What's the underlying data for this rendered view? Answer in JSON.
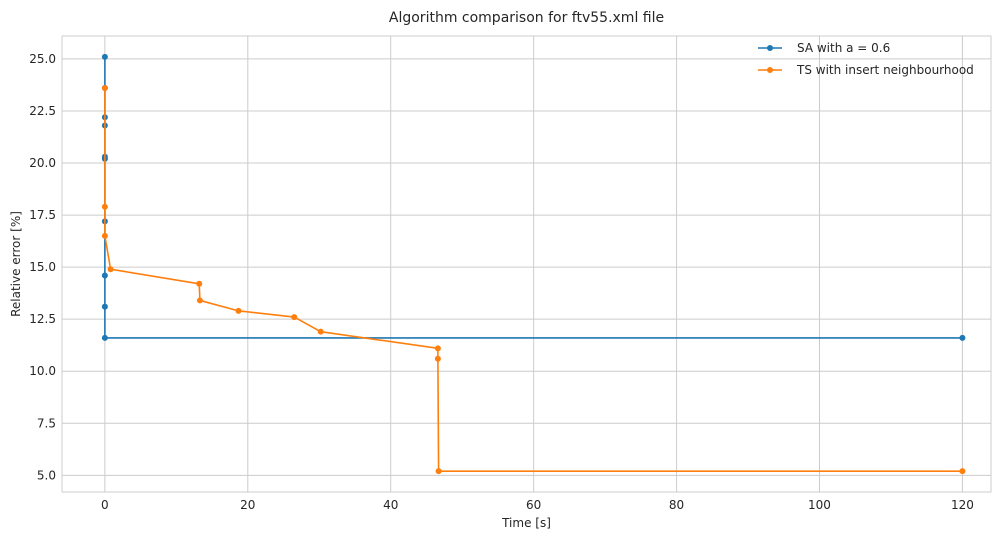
{
  "chart_data": {
    "type": "line",
    "title": "Algorithm comparison for ftv55.xml file",
    "xlabel": "Time [s]",
    "ylabel": "Relative error [%]",
    "xlim": [
      -6,
      124
    ],
    "ylim": [
      4.2,
      26.1
    ],
    "xticks": [
      0,
      20,
      40,
      60,
      80,
      100,
      120
    ],
    "yticks": [
      5.0,
      7.5,
      10.0,
      12.5,
      15.0,
      17.5,
      20.0,
      22.5,
      25.0
    ],
    "xtick_labels": [
      "0",
      "20",
      "40",
      "60",
      "80",
      "100",
      "120"
    ],
    "ytick_labels": [
      "5.0",
      "7.5",
      "10.0",
      "12.5",
      "15.0",
      "17.5",
      "20.0",
      "22.5",
      "25.0"
    ],
    "grid": true,
    "legend_position": "top-right",
    "series": [
      {
        "name": "SA with a = 0.6",
        "color": "#1f77b4",
        "x": [
          0.0,
          0.0,
          0.0,
          0.0,
          0.0,
          0.0,
          0.0,
          0.0,
          0.0,
          0.0,
          120.0
        ],
        "y": [
          25.1,
          23.6,
          22.2,
          21.8,
          20.3,
          20.2,
          17.2,
          14.6,
          13.1,
          11.6,
          11.6
        ]
      },
      {
        "name": "TS with insert neighbourhood",
        "color": "#ff7f0e",
        "x": [
          0.0,
          0.0,
          0.0,
          0.8,
          13.2,
          13.3,
          18.7,
          26.5,
          30.2,
          46.6,
          46.6,
          46.7,
          120.0
        ],
        "y": [
          23.6,
          17.9,
          16.5,
          14.9,
          14.2,
          13.4,
          12.9,
          12.6,
          11.9,
          11.1,
          10.6,
          5.2,
          5.2
        ]
      }
    ]
  }
}
